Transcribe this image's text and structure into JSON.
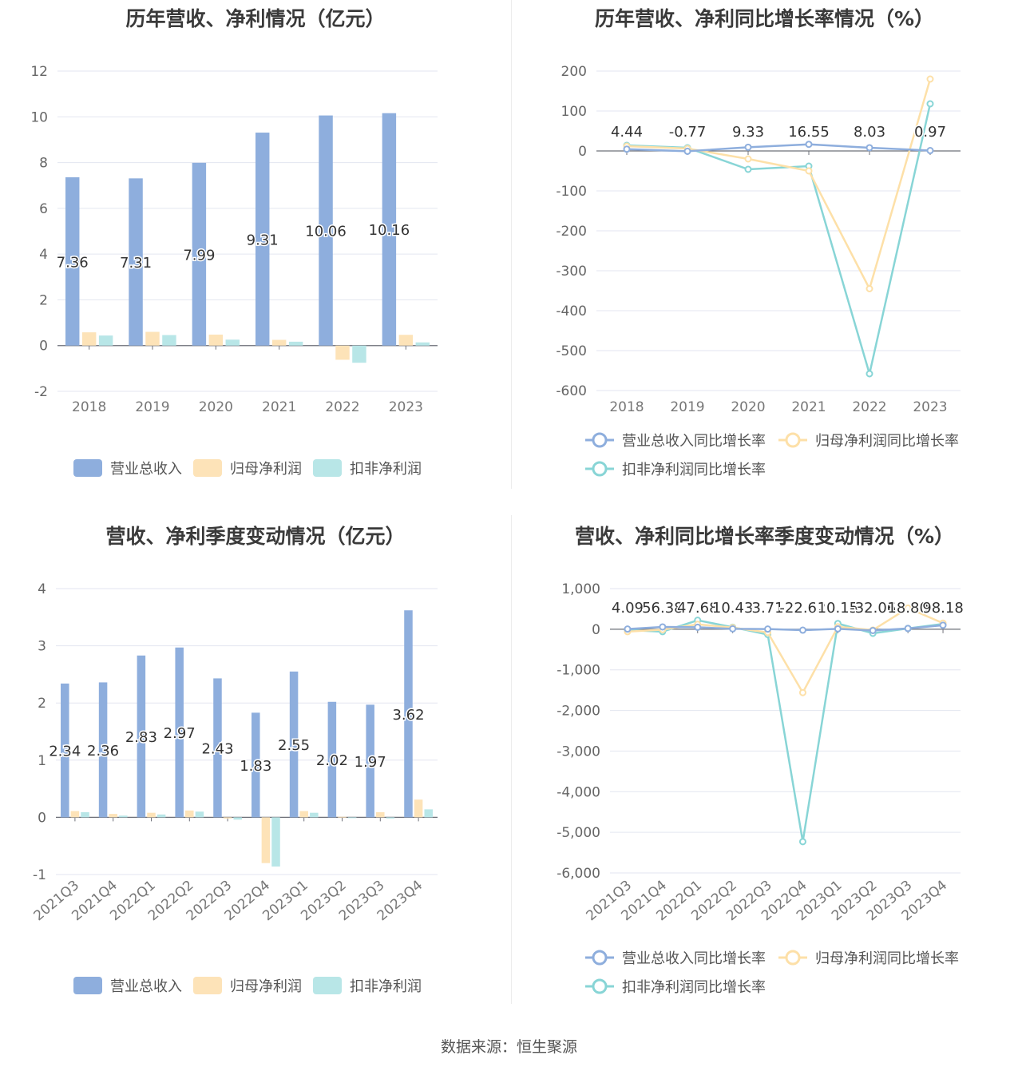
{
  "source_text": "数据来源：恒生聚源",
  "chart_data": [
    {
      "id": "annual-amounts",
      "type": "bar",
      "title": "历年营收、净利情况（亿元）",
      "categories": [
        "2018",
        "2019",
        "2020",
        "2021",
        "2022",
        "2023"
      ],
      "ylim": [
        -2,
        12
      ],
      "yticks": [
        "12",
        "10",
        "8",
        "6",
        "4",
        "2",
        "0",
        "-2"
      ],
      "ytick_values": [
        12,
        10,
        8,
        6,
        4,
        2,
        0,
        -2
      ],
      "legend_position": "bottom",
      "series": [
        {
          "name": "营业总收入",
          "color": "#8eaedd",
          "values": [
            7.36,
            7.31,
            7.99,
            9.31,
            10.06,
            10.16
          ],
          "labels": [
            "7.36",
            "7.31",
            "7.99",
            "9.31",
            "10.06",
            "10.16"
          ]
        },
        {
          "name": "归母净利润",
          "color": "#fde3b8",
          "values": [
            0.58,
            0.6,
            0.48,
            0.25,
            -0.62,
            0.47
          ]
        },
        {
          "name": "扣非净利润",
          "color": "#b8e6e7",
          "values": [
            0.44,
            0.46,
            0.26,
            0.17,
            -0.75,
            0.14
          ]
        }
      ]
    },
    {
      "id": "annual-growth",
      "type": "line",
      "title": "历年营收、净利同比增长率情况（%）",
      "categories": [
        "2018",
        "2019",
        "2020",
        "2021",
        "2022",
        "2023"
      ],
      "ylim": [
        -600,
        200
      ],
      "yticks": [
        "200",
        "100",
        "0",
        "-100",
        "-200",
        "-300",
        "-400",
        "-500",
        "-600"
      ],
      "ytick_values": [
        200,
        100,
        0,
        -100,
        -200,
        -300,
        -400,
        -500,
        -600
      ],
      "legend_position": "bottom",
      "series": [
        {
          "name": "营业总收入同比增长率",
          "color": "#8eaedd",
          "values": [
            4.44,
            -0.77,
            9.33,
            16.55,
            8.03,
            0.97
          ],
          "labels": [
            "4.44",
            "-0.77",
            "9.33",
            "16.55",
            "8.03",
            "0.97"
          ]
        },
        {
          "name": "归母净利润同比增长率",
          "color": "#fde0a8",
          "values": [
            12,
            6,
            -20,
            -50,
            -345,
            180
          ]
        },
        {
          "name": "扣非净利润同比增长率",
          "color": "#88d5d6",
          "values": [
            14,
            8,
            -46,
            -38,
            -558,
            118
          ]
        }
      ]
    },
    {
      "id": "quarterly-amounts",
      "type": "bar",
      "title": "营收、净利季度变动情况（亿元）",
      "categories": [
        "2021Q3",
        "2021Q4",
        "2022Q1",
        "2022Q2",
        "2022Q3",
        "2022Q4",
        "2023Q1",
        "2023Q2",
        "2023Q3",
        "2023Q4"
      ],
      "ylim": [
        -1,
        4
      ],
      "yticks": [
        "4",
        "3",
        "2",
        "1",
        "0",
        "-1"
      ],
      "ytick_values": [
        4,
        3,
        2,
        1,
        0,
        -1
      ],
      "legend_position": "bottom",
      "series": [
        {
          "name": "营业总收入",
          "color": "#8eaedd",
          "values": [
            2.34,
            2.36,
            2.83,
            2.97,
            2.43,
            1.83,
            2.55,
            2.02,
            1.97,
            3.62
          ],
          "labels": [
            "2.34",
            "2.36",
            "2.83",
            "2.97",
            "2.43",
            "1.83",
            "2.55",
            "2.02",
            "1.97",
            "3.62"
          ]
        },
        {
          "name": "归母净利润",
          "color": "#fde3b8",
          "values": [
            0.11,
            0.06,
            0.08,
            0.12,
            -0.02,
            -0.8,
            0.11,
            0.01,
            0.09,
            0.31
          ]
        },
        {
          "name": "扣非净利润",
          "color": "#b8e6e7",
          "values": [
            0.09,
            0.03,
            0.05,
            0.1,
            -0.04,
            -0.86,
            0.08,
            0.0,
            -0.02,
            0.14
          ]
        }
      ]
    },
    {
      "id": "quarterly-growth",
      "type": "line",
      "title": "营收、净利同比增长率季度变动情况（%）",
      "categories": [
        "2021Q3",
        "2021Q4",
        "2022Q1",
        "2022Q2",
        "2022Q3",
        "2022Q4",
        "2023Q1",
        "2023Q2",
        "2023Q3",
        "2023Q4"
      ],
      "ylim": [
        -6000,
        1000
      ],
      "yticks": [
        "1,000",
        "0",
        "-1,000",
        "-2,000",
        "-3,000",
        "-4,000",
        "-5,000",
        "-6,000"
      ],
      "ytick_values": [
        1000,
        0,
        -1000,
        -2000,
        -3000,
        -4000,
        -5000,
        -6000
      ],
      "legend_position": "bottom",
      "series": [
        {
          "name": "营业总收入同比增长率",
          "color": "#8eaedd",
          "values": [
            4.09,
            56.38,
            47.68,
            10.43,
            3.71,
            -22.62,
            10.15,
            -32.06,
            18.8,
            98.18
          ],
          "labels": [
            "4.09",
            "56.38",
            "47.68",
            "10.43",
            "3.71",
            "-22.62",
            "10.15",
            "-32.06",
            "18.80",
            "98.18"
          ]
        },
        {
          "name": "归母净利润同比增长率",
          "color": "#fde0a8",
          "values": [
            -60,
            -10,
            120,
            40,
            -80,
            -1560,
            60,
            -20,
            520,
            150
          ]
        },
        {
          "name": "扣非净利润同比增长率",
          "color": "#88d5d6",
          "values": [
            -20,
            -60,
            220,
            50,
            -130,
            -5230,
            140,
            -100,
            20,
            130
          ]
        }
      ]
    }
  ]
}
